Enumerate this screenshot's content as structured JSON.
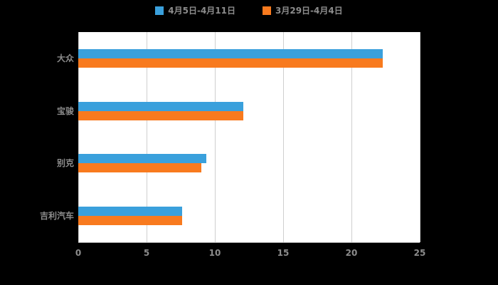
{
  "legend": [
    {
      "label": "4月5日-4月11日",
      "color": "#3aa0dc"
    },
    {
      "label": "3月29日-4月4日",
      "color": "#f87a1e"
    }
  ],
  "chart_data": {
    "type": "bar",
    "orientation": "horizontal",
    "title": "",
    "xlabel": "",
    "ylabel": "",
    "categories": [
      "大众",
      "宝骏",
      "别克",
      "吉利汽车"
    ],
    "series": [
      {
        "name": "4月5日-4月11日",
        "color": "#3aa0dc",
        "values": [
          22.3,
          12.1,
          9.4,
          7.6
        ]
      },
      {
        "name": "3月29日-4月4日",
        "color": "#f87a1e",
        "values": [
          22.3,
          12.1,
          9.0,
          7.6
        ]
      }
    ],
    "xlim": [
      0,
      25
    ],
    "xticks": [
      0,
      5,
      10,
      15,
      20,
      25
    ],
    "grid": true,
    "legend_position": "top",
    "plot_background": "#ffffff",
    "page_background": "#000000",
    "text_color": "#8c8c8c",
    "gridline_color": "#cfcfcf"
  }
}
